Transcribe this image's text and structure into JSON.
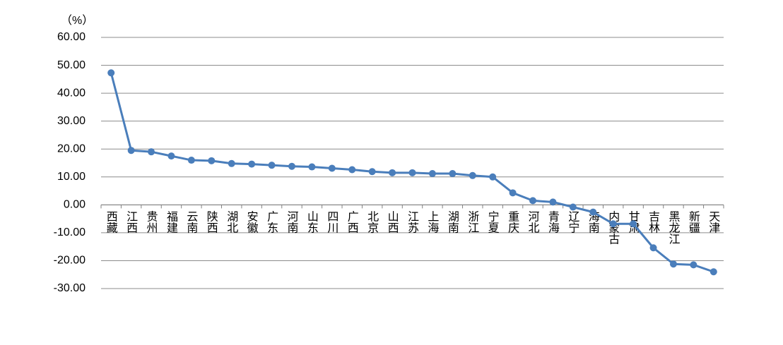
{
  "chart_data": {
    "type": "line",
    "y_label": "（%）",
    "categories": [
      "西藏",
      "江西",
      "贵州",
      "福建",
      "云南",
      "陕西",
      "湖北",
      "安徽",
      "广东",
      "河南",
      "山东",
      "四川",
      "广西",
      "北京",
      "山西",
      "江苏",
      "上海",
      "湖南",
      "浙江",
      "宁夏",
      "重庆",
      "河北",
      "青海",
      "辽宁",
      "海南",
      "内蒙古",
      "甘肃",
      "吉林",
      "黑龙江",
      "新疆",
      "天津"
    ],
    "series": [
      {
        "color": "#4a7ebb",
        "values": [
          47.3,
          19.5,
          19.0,
          17.5,
          16.0,
          15.8,
          14.8,
          14.6,
          14.2,
          13.8,
          13.6,
          13.1,
          12.6,
          11.9,
          11.5,
          11.5,
          11.2,
          11.2,
          10.5,
          10.0,
          4.3,
          1.5,
          1.0,
          -0.8,
          -2.6,
          -6.8,
          -6.8,
          -15.4,
          -21.2,
          -21.5,
          -24.0
        ]
      }
    ],
    "ylim": [
      -30,
      60
    ],
    "yticks": [
      {
        "value": 60,
        "label": "60.00"
      },
      {
        "value": 50,
        "label": "50.00"
      },
      {
        "value": 40,
        "label": "40.00"
      },
      {
        "value": 30,
        "label": "30.00"
      },
      {
        "value": 20,
        "label": "20.00"
      },
      {
        "value": 10,
        "label": "10.00"
      },
      {
        "value": 0,
        "label": "0.00"
      },
      {
        "value": -10,
        "label": "-10.00"
      },
      {
        "value": -20,
        "label": "-20.00"
      },
      {
        "value": -30,
        "label": "-30.00"
      }
    ],
    "grid": true
  }
}
